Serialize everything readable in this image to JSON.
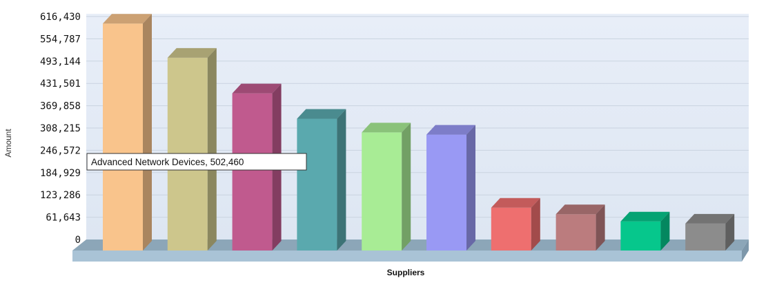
{
  "chart_data": {
    "type": "bar",
    "xlabel": "Suppliers",
    "ylabel": "Amount",
    "ylim": [
      0,
      616430
    ],
    "yticks": [
      0,
      61643,
      123286,
      184929,
      246572,
      308215,
      369858,
      431501,
      493144,
      554787,
      616430
    ],
    "ytick_labels": [
      "0",
      "61,643",
      "123,286",
      "184,929",
      "246,572",
      "308,215",
      "369,858",
      "431,501",
      "493,144",
      "554,787",
      "616,430"
    ],
    "values": [
      597000,
      502460,
      404000,
      334000,
      296000,
      290000,
      88000,
      70000,
      50000,
      44000
    ],
    "colors": [
      "#f9c48c",
      "#cdc68c",
      "#c05a8e",
      "#5aa9ae",
      "#a8ec95",
      "#9999f4",
      "#ee6f6f",
      "#bb7c7e",
      "#06c78c",
      "#8c8c8c"
    ],
    "grid": true,
    "tooltip": "Advanced Network Devices, 502,460"
  }
}
